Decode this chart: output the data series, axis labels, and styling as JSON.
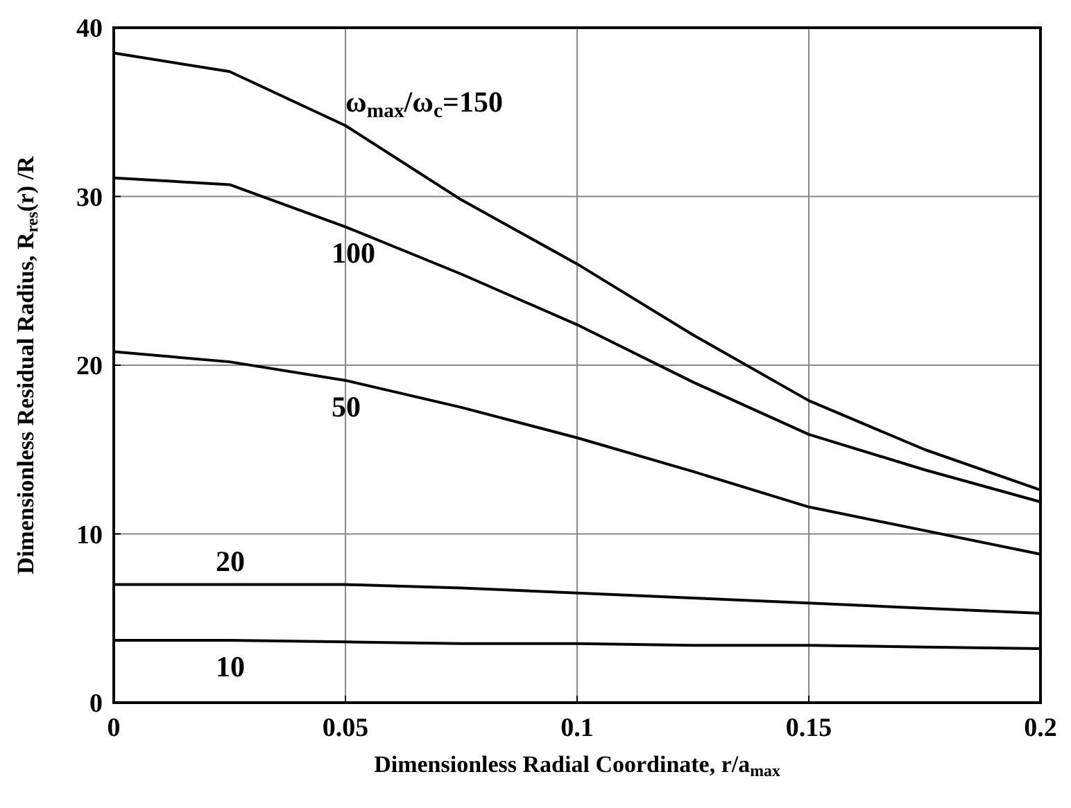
{
  "chart_data": {
    "type": "line",
    "xlabel": "Dimensionless  Radial Coordinate, r/a$_{max}$",
    "ylabel": "Dimensionless Residual Radius,  R$_{res}$(r) /R",
    "x": [
      0,
      0.025,
      0.05,
      0.075,
      0.1,
      0.125,
      0.15,
      0.175,
      0.2
    ],
    "series": [
      {
        "name": "ω$_{max}$/ω$_{c}$=150",
        "color": "#000000",
        "values": [
          38.5,
          37.4,
          34.2,
          29.8,
          26.0,
          21.8,
          17.9,
          15.0,
          12.6
        ]
      },
      {
        "name": "100",
        "color": "#000000",
        "values": [
          31.1,
          30.7,
          28.2,
          25.4,
          22.4,
          19.0,
          15.9,
          13.8,
          11.9
        ]
      },
      {
        "name": "50",
        "color": "#000000",
        "values": [
          20.8,
          20.2,
          19.1,
          17.5,
          15.7,
          13.7,
          11.6,
          10.2,
          8.8
        ]
      },
      {
        "name": "20",
        "color": "#000000",
        "values": [
          7.0,
          7.0,
          7.0,
          6.8,
          6.5,
          6.2,
          5.9,
          5.6,
          5.3
        ]
      },
      {
        "name": "10",
        "color": "#000000",
        "values": [
          3.7,
          3.7,
          3.6,
          3.5,
          3.5,
          3.4,
          3.4,
          3.3,
          3.2
        ]
      }
    ],
    "xlim": [
      0,
      0.2
    ],
    "xticks": [
      0,
      0.05,
      0.1,
      0.15,
      0.2
    ],
    "ylim": [
      0,
      40
    ],
    "yticks": [
      0,
      10,
      20,
      30,
      40
    ],
    "grid": true,
    "marker": "none",
    "line_style": "solid"
  }
}
